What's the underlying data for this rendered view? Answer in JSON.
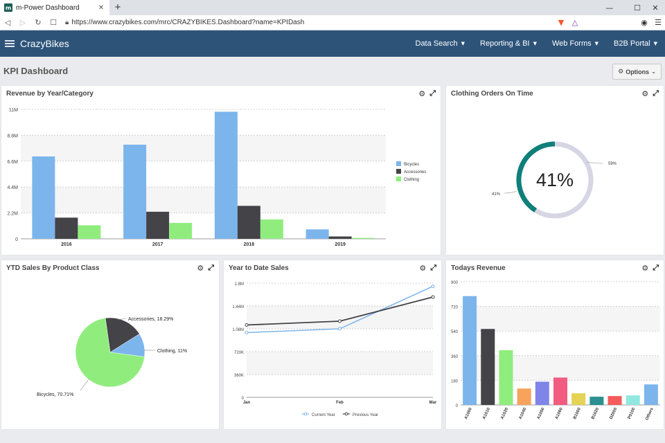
{
  "browser": {
    "tab_title": "m-Power Dashboard",
    "favicon": "m",
    "url": "https://www.crazybikes.com/mrc/CRAZYBIKES.Dashboard?name=KPIDash"
  },
  "app": {
    "brand": "CrazyBikes",
    "menu": [
      "Data Search",
      "Reporting & BI",
      "Web Forms",
      "B2B Portal"
    ]
  },
  "page": {
    "title": "KPI Dashboard",
    "options_label": "Options"
  },
  "panels": {
    "revenue": {
      "title": "Revenue by Year/Category"
    },
    "clothing_orders": {
      "title": "Clothing Orders On Time"
    },
    "ytd_sales": {
      "title": "YTD Sales By Product Class"
    },
    "year_to_date": {
      "title": "Year to Date Sales"
    },
    "todays_revenue": {
      "title": "Todays Revenue"
    }
  },
  "colors": {
    "bicycles": "#7cb5ec",
    "accessories": "#434348",
    "clothing": "#90ed7d",
    "teal": "#0f7f7a",
    "ring_bg": "#d6d6e4",
    "header": "#2d5379"
  },
  "chart_data": [
    {
      "id": "revenue",
      "type": "bar",
      "categories": [
        "2016",
        "2017",
        "2018",
        "2019"
      ],
      "yticks": [
        "0",
        "2.2M",
        "4.4M",
        "6.6M",
        "8.8M",
        "11M"
      ],
      "ylim": [
        0,
        11000000
      ],
      "series": [
        {
          "name": "Bicycles",
          "values": [
            7000000,
            8000000,
            10800000,
            800000
          ]
        },
        {
          "name": "Accessories",
          "values": [
            1800000,
            2300000,
            2800000,
            200000
          ]
        },
        {
          "name": "Clothing",
          "values": [
            1150000,
            1350000,
            1650000,
            80000
          ]
        }
      ],
      "legend": "right"
    },
    {
      "id": "clothing_orders",
      "type": "pie",
      "center_label": "41%",
      "slices": [
        {
          "label": "41%",
          "value": 41
        },
        {
          "label": "59%",
          "value": 59
        }
      ]
    },
    {
      "id": "ytd_sales",
      "type": "pie",
      "slices": [
        {
          "label": "Bicycles, 70.71%",
          "value": 70.71
        },
        {
          "label": "Accessories, 18.29%",
          "value": 18.29
        },
        {
          "label": "Clothing, 11%",
          "value": 11
        }
      ]
    },
    {
      "id": "year_to_date",
      "type": "line",
      "x": [
        "Jan",
        "Feb",
        "Mar"
      ],
      "yticks": [
        "0",
        "360K",
        "720K",
        "1.08M",
        "1.44M",
        "1.8M"
      ],
      "ylim": [
        0,
        1800000
      ],
      "series": [
        {
          "name": "Current Year",
          "values": [
            1020000,
            1080000,
            1750000
          ]
        },
        {
          "name": "Previous Year",
          "values": [
            1140000,
            1200000,
            1580000
          ]
        }
      ],
      "legend": "bottom"
    },
    {
      "id": "todays_revenue",
      "type": "bar",
      "categories": [
        "A1000",
        "A1010",
        "A1020",
        "A1040",
        "A1050",
        "A1060",
        "B1000",
        "B1020",
        "D2000",
        "P0100",
        "Others"
      ],
      "values": [
        795,
        555,
        400,
        120,
        170,
        200,
        85,
        60,
        65,
        70,
        150
      ],
      "colors": [
        "#7cb5ec",
        "#434348",
        "#90ed7d",
        "#f7a35c",
        "#8085e9",
        "#f15c80",
        "#e4d354",
        "#2b908f",
        "#f45b5b",
        "#91e8e1",
        "#7cb5ec"
      ],
      "yticks": [
        "0",
        "180",
        "360",
        "540",
        "720",
        "900"
      ],
      "ylim": [
        0,
        900
      ]
    }
  ]
}
